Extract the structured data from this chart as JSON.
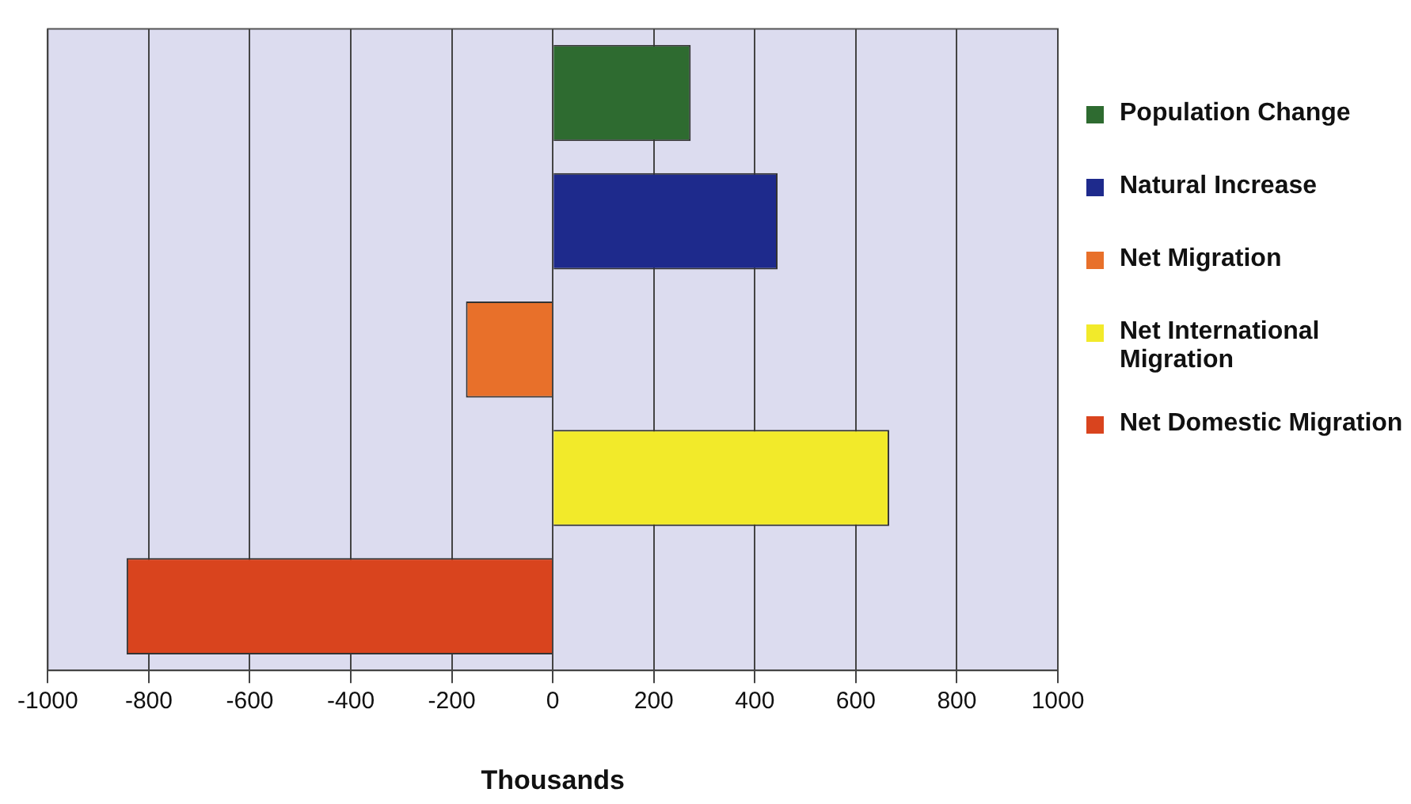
{
  "chart_data": {
    "type": "bar",
    "orientation": "horizontal",
    "xlabel": "Thousands",
    "categories": [
      null,
      null,
      null,
      null,
      null
    ],
    "series": [
      {
        "name": "Population Change",
        "color": "#2e6b30",
        "values": [
          273,
          null,
          null,
          null,
          null
        ]
      },
      {
        "name": "Natural Increase",
        "color": "#1e2a8c",
        "values": [
          null,
          445,
          null,
          null,
          null
        ]
      },
      {
        "name": "Net Migration",
        "color": "#e8702a",
        "values": [
          null,
          null,
          -172,
          null,
          null
        ]
      },
      {
        "name": "Net International Migration",
        "color": "#f2ea2a",
        "values": [
          null,
          null,
          null,
          666,
          null
        ]
      },
      {
        "name": "Net Domestic Migration",
        "color": "#d9441e",
        "values": [
          null,
          null,
          null,
          null,
          -844
        ]
      }
    ],
    "xlim": [
      -1000,
      1000
    ],
    "xticks": [
      -1000,
      -800,
      -600,
      -400,
      -200,
      0,
      200,
      400,
      600,
      800,
      1000
    ],
    "grid": "x",
    "legend": "right"
  }
}
